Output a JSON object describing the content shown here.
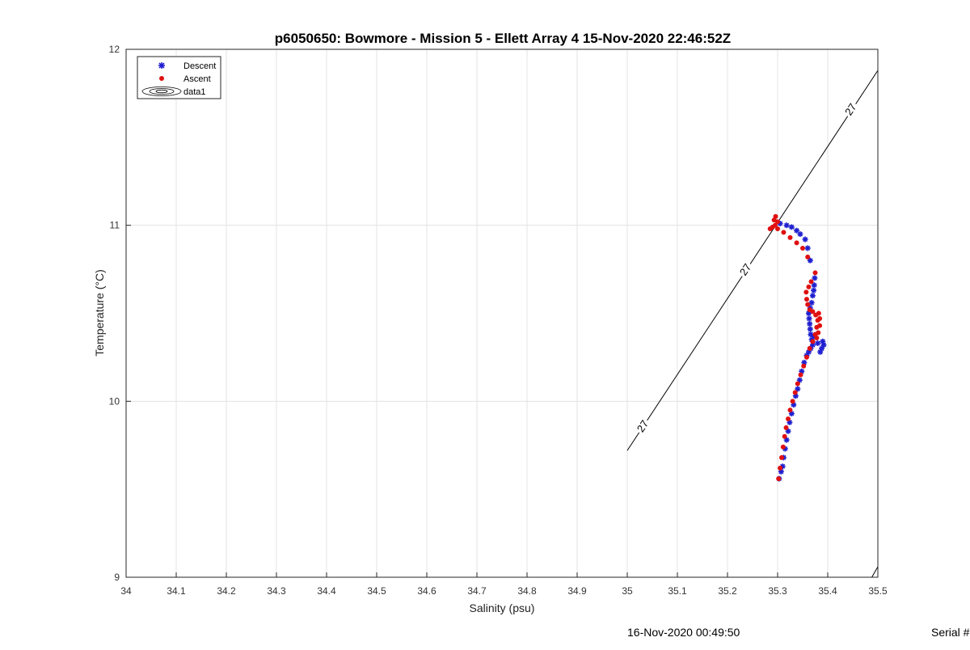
{
  "chart_data": {
    "type": "scatter",
    "title": "p6050650: Bowmore - Mission 5 - Ellett Array 4 15-Nov-2020 22:46:52Z",
    "xlabel": "Salinity (psu)",
    "ylabel": "Temperature (°C)",
    "xlim": [
      34,
      35.5
    ],
    "ylim": [
      9,
      12
    ],
    "xticks": [
      "34",
      "34.1",
      "34.2",
      "34.3",
      "34.4",
      "34.5",
      "34.6",
      "34.7",
      "34.8",
      "34.9",
      "35",
      "35.1",
      "35.2",
      "35.3",
      "35.4",
      "35.5"
    ],
    "yticks": [
      "9",
      "10",
      "11",
      "12"
    ],
    "grid": true,
    "legend_position": "top-left",
    "legend": [
      "Descent",
      "Ascent",
      "data1"
    ],
    "series": [
      {
        "name": "Descent",
        "color": "#1f1fd0",
        "marker": "asterisk",
        "points": [
          [
            35.303,
            9.56
          ],
          [
            35.307,
            9.6
          ],
          [
            35.31,
            9.63
          ],
          [
            35.312,
            9.68
          ],
          [
            35.315,
            9.73
          ],
          [
            35.318,
            9.78
          ],
          [
            35.321,
            9.83
          ],
          [
            35.324,
            9.88
          ],
          [
            35.328,
            9.93
          ],
          [
            35.332,
            9.98
          ],
          [
            35.336,
            10.03
          ],
          [
            35.34,
            10.07
          ],
          [
            35.344,
            10.12
          ],
          [
            35.348,
            10.17
          ],
          [
            35.353,
            10.22
          ],
          [
            35.358,
            10.26
          ],
          [
            35.362,
            10.28
          ],
          [
            35.366,
            10.3
          ],
          [
            35.37,
            10.32
          ],
          [
            35.368,
            10.35
          ],
          [
            35.366,
            10.38
          ],
          [
            35.365,
            10.41
          ],
          [
            35.364,
            10.44
          ],
          [
            35.363,
            10.47
          ],
          [
            35.362,
            10.5
          ],
          [
            35.365,
            10.53
          ],
          [
            35.368,
            10.56
          ],
          [
            35.37,
            10.6
          ],
          [
            35.372,
            10.63
          ],
          [
            35.373,
            10.66
          ],
          [
            35.374,
            10.7
          ],
          [
            35.365,
            10.8
          ],
          [
            35.36,
            10.87
          ],
          [
            35.355,
            10.92
          ],
          [
            35.345,
            10.95
          ],
          [
            35.338,
            10.97
          ],
          [
            35.328,
            10.99
          ],
          [
            35.318,
            11.0
          ],
          [
            35.305,
            11.01
          ],
          [
            35.388,
            10.3
          ],
          [
            35.392,
            10.32
          ],
          [
            35.39,
            10.34
          ],
          [
            35.385,
            10.28
          ],
          [
            35.38,
            10.33
          ],
          [
            35.372,
            10.37
          ]
        ]
      },
      {
        "name": "Ascent",
        "color": "#e01010",
        "marker": "dot",
        "points": [
          [
            35.302,
            9.56
          ],
          [
            35.305,
            9.62
          ],
          [
            35.308,
            9.68
          ],
          [
            35.311,
            9.74
          ],
          [
            35.314,
            9.8
          ],
          [
            35.317,
            9.85
          ],
          [
            35.321,
            9.9
          ],
          [
            35.325,
            9.95
          ],
          [
            35.33,
            10.0
          ],
          [
            35.335,
            10.05
          ],
          [
            35.34,
            10.1
          ],
          [
            35.346,
            10.15
          ],
          [
            35.352,
            10.2
          ],
          [
            35.358,
            10.25
          ],
          [
            35.364,
            10.3
          ],
          [
            35.37,
            10.34
          ],
          [
            35.375,
            10.38
          ],
          [
            35.378,
            10.42
          ],
          [
            35.38,
            10.46
          ],
          [
            35.376,
            10.49
          ],
          [
            35.37,
            10.51
          ],
          [
            35.364,
            10.52
          ],
          [
            35.36,
            10.55
          ],
          [
            35.358,
            10.58
          ],
          [
            35.357,
            10.62
          ],
          [
            35.362,
            10.65
          ],
          [
            35.367,
            10.68
          ],
          [
            35.375,
            10.73
          ],
          [
            35.36,
            10.82
          ],
          [
            35.35,
            10.87
          ],
          [
            35.338,
            10.9
          ],
          [
            35.325,
            10.93
          ],
          [
            35.312,
            10.96
          ],
          [
            35.3,
            10.98
          ],
          [
            35.295,
            11.0
          ],
          [
            35.293,
            11.03
          ],
          [
            35.296,
            11.05
          ],
          [
            35.3,
            11.02
          ],
          [
            35.29,
            10.99
          ],
          [
            35.285,
            10.98
          ],
          [
            35.382,
            10.5
          ],
          [
            35.384,
            10.47
          ],
          [
            35.384,
            10.43
          ],
          [
            35.381,
            10.39
          ],
          [
            35.378,
            10.36
          ]
        ]
      }
    ],
    "contours": [
      {
        "label": "27",
        "color": "#000000",
        "points": [
          [
            35.0,
            9.72
          ],
          [
            35.5,
            11.88
          ]
        ],
        "label_points": [
          [
            35.03,
            9.86
          ],
          [
            35.235,
            10.75
          ],
          [
            35.445,
            11.66
          ]
        ]
      },
      {
        "label": "",
        "color": "#000000",
        "points": [
          [
            35.488,
            9.0
          ],
          [
            35.5,
            9.06
          ]
        ],
        "label_points": []
      }
    ]
  },
  "footer": {
    "timestamp": "16-Nov-2020 00:49:50",
    "serial_partial": "Serial #"
  }
}
